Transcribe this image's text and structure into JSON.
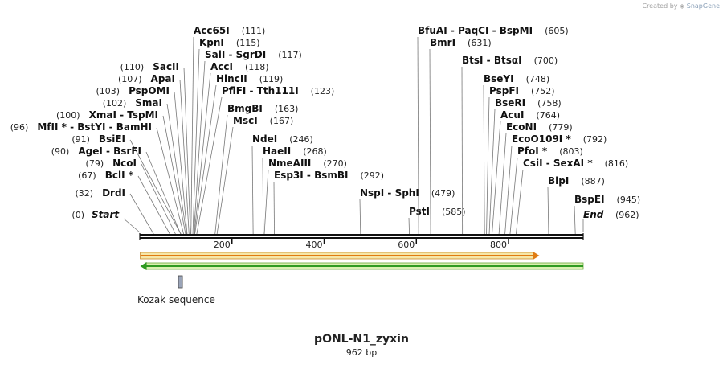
{
  "credit": {
    "prefix": "Created by",
    "brand": "SnapGene"
  },
  "map": {
    "title": "pONL-N1_zyxin",
    "length_label": "962 bp",
    "length": 962
  },
  "sites": [
    {
      "name": "Acc65I",
      "pos": 111
    },
    {
      "name": "KpnI",
      "pos": 115
    },
    {
      "name": "SalI  -  SgrDI",
      "pos": 117
    },
    {
      "name": "AccI",
      "pos": 118
    },
    {
      "name": "HincII",
      "pos": 119
    },
    {
      "name": "PflFI  -  Tth111I",
      "pos": 123
    },
    {
      "name": "BmgBI",
      "pos": 163
    },
    {
      "name": "MscI",
      "pos": 167
    },
    {
      "name": "NdeI",
      "pos": 246
    },
    {
      "name": "HaeII",
      "pos": 268
    },
    {
      "name": "NmeAIII",
      "pos": 270
    },
    {
      "name": "Esp3I  -  BsmBI",
      "pos": 292
    },
    {
      "name": "NspI  -  SphI",
      "pos": 479
    },
    {
      "name": "PstI",
      "pos": 585
    },
    {
      "name": "BfuAI  -  PaqCI  -  BspMI",
      "pos": 605
    },
    {
      "name": "BmrI",
      "pos": 631
    },
    {
      "name": "BtsI  -  BtsαI",
      "pos": 700
    },
    {
      "name": "BseYI",
      "pos": 748
    },
    {
      "name": "PspFI",
      "pos": 752
    },
    {
      "name": "BseRI",
      "pos": 758
    },
    {
      "name": "AcuI",
      "pos": 764
    },
    {
      "name": "EcoNI",
      "pos": 779
    },
    {
      "name": "EcoO109I *",
      "pos": 792
    },
    {
      "name": "PfoI *",
      "pos": 803
    },
    {
      "name": "CsiI  -  SexAI *",
      "pos": 816
    },
    {
      "name": "BlpI",
      "pos": 887
    },
    {
      "name": "BspEI",
      "pos": 945
    },
    {
      "name": "SacII",
      "pos": 110
    },
    {
      "name": "ApaI",
      "pos": 107
    },
    {
      "name": "PspOMI",
      "pos": 103
    },
    {
      "name": "SmaI",
      "pos": 102
    },
    {
      "name": "XmaI  -  TspMI",
      "pos": 100
    },
    {
      "name": "MfII *  -  BstYI  -  BamHI",
      "pos": 96
    },
    {
      "name": "BsiEI",
      "pos": 91
    },
    {
      "name": "AgeI  -  BsrFI",
      "pos": 90
    },
    {
      "name": "NcoI",
      "pos": 79
    },
    {
      "name": "BclI *",
      "pos": 67
    },
    {
      "name": "DrdI",
      "pos": 32
    }
  ],
  "ends": [
    {
      "name": "Start",
      "pos_label": "0"
    },
    {
      "name": "End",
      "pos_label": "962"
    }
  ],
  "ticks": [
    "200",
    "400",
    "600",
    "800"
  ],
  "features": [
    {
      "name": "",
      "color": "#ff8c1a",
      "start": 1,
      "end": 867,
      "direction": "forward"
    },
    {
      "name": "",
      "color": "#3ab02b",
      "start": 1,
      "end": 962,
      "direction": "reverse"
    },
    {
      "name": "Kozak sequence",
      "color": "#9aa4b8",
      "start": 82,
      "end": 92,
      "direction": "none"
    }
  ]
}
